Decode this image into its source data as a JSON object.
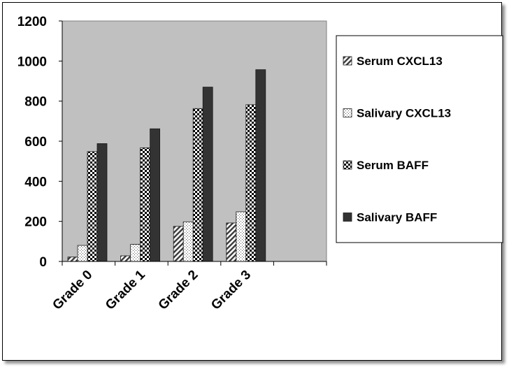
{
  "chart_data": {
    "type": "bar",
    "title": "",
    "xlabel": "",
    "ylabel": "",
    "categories": [
      "Grade 0",
      "Grade 1",
      "Grade  2",
      "Grade  3"
    ],
    "ylim": [
      0,
      1200
    ],
    "yticks": [
      "0",
      "200",
      "400",
      "600",
      "800",
      "1000",
      "1200"
    ],
    "grid": false,
    "legend_position": "right",
    "plot_background": "#c0c0c0",
    "series": [
      {
        "name": "Serum CXCL13",
        "pattern": "diagonal-hatch",
        "color": "#404040",
        "values": [
          22,
          28,
          175,
          192
        ]
      },
      {
        "name": "Salivary CXCL13",
        "pattern": "sparse-dots",
        "color": "#ffffff",
        "values": [
          80,
          85,
          198,
          248
        ]
      },
      {
        "name": "Serum BAFF",
        "pattern": "checkerboard",
        "color": "#000000",
        "values": [
          548,
          567,
          763,
          782
        ]
      },
      {
        "name": "Salivary BAFF",
        "pattern": "solid",
        "color": "#333333",
        "values": [
          588,
          662,
          870,
          957
        ]
      }
    ]
  }
}
